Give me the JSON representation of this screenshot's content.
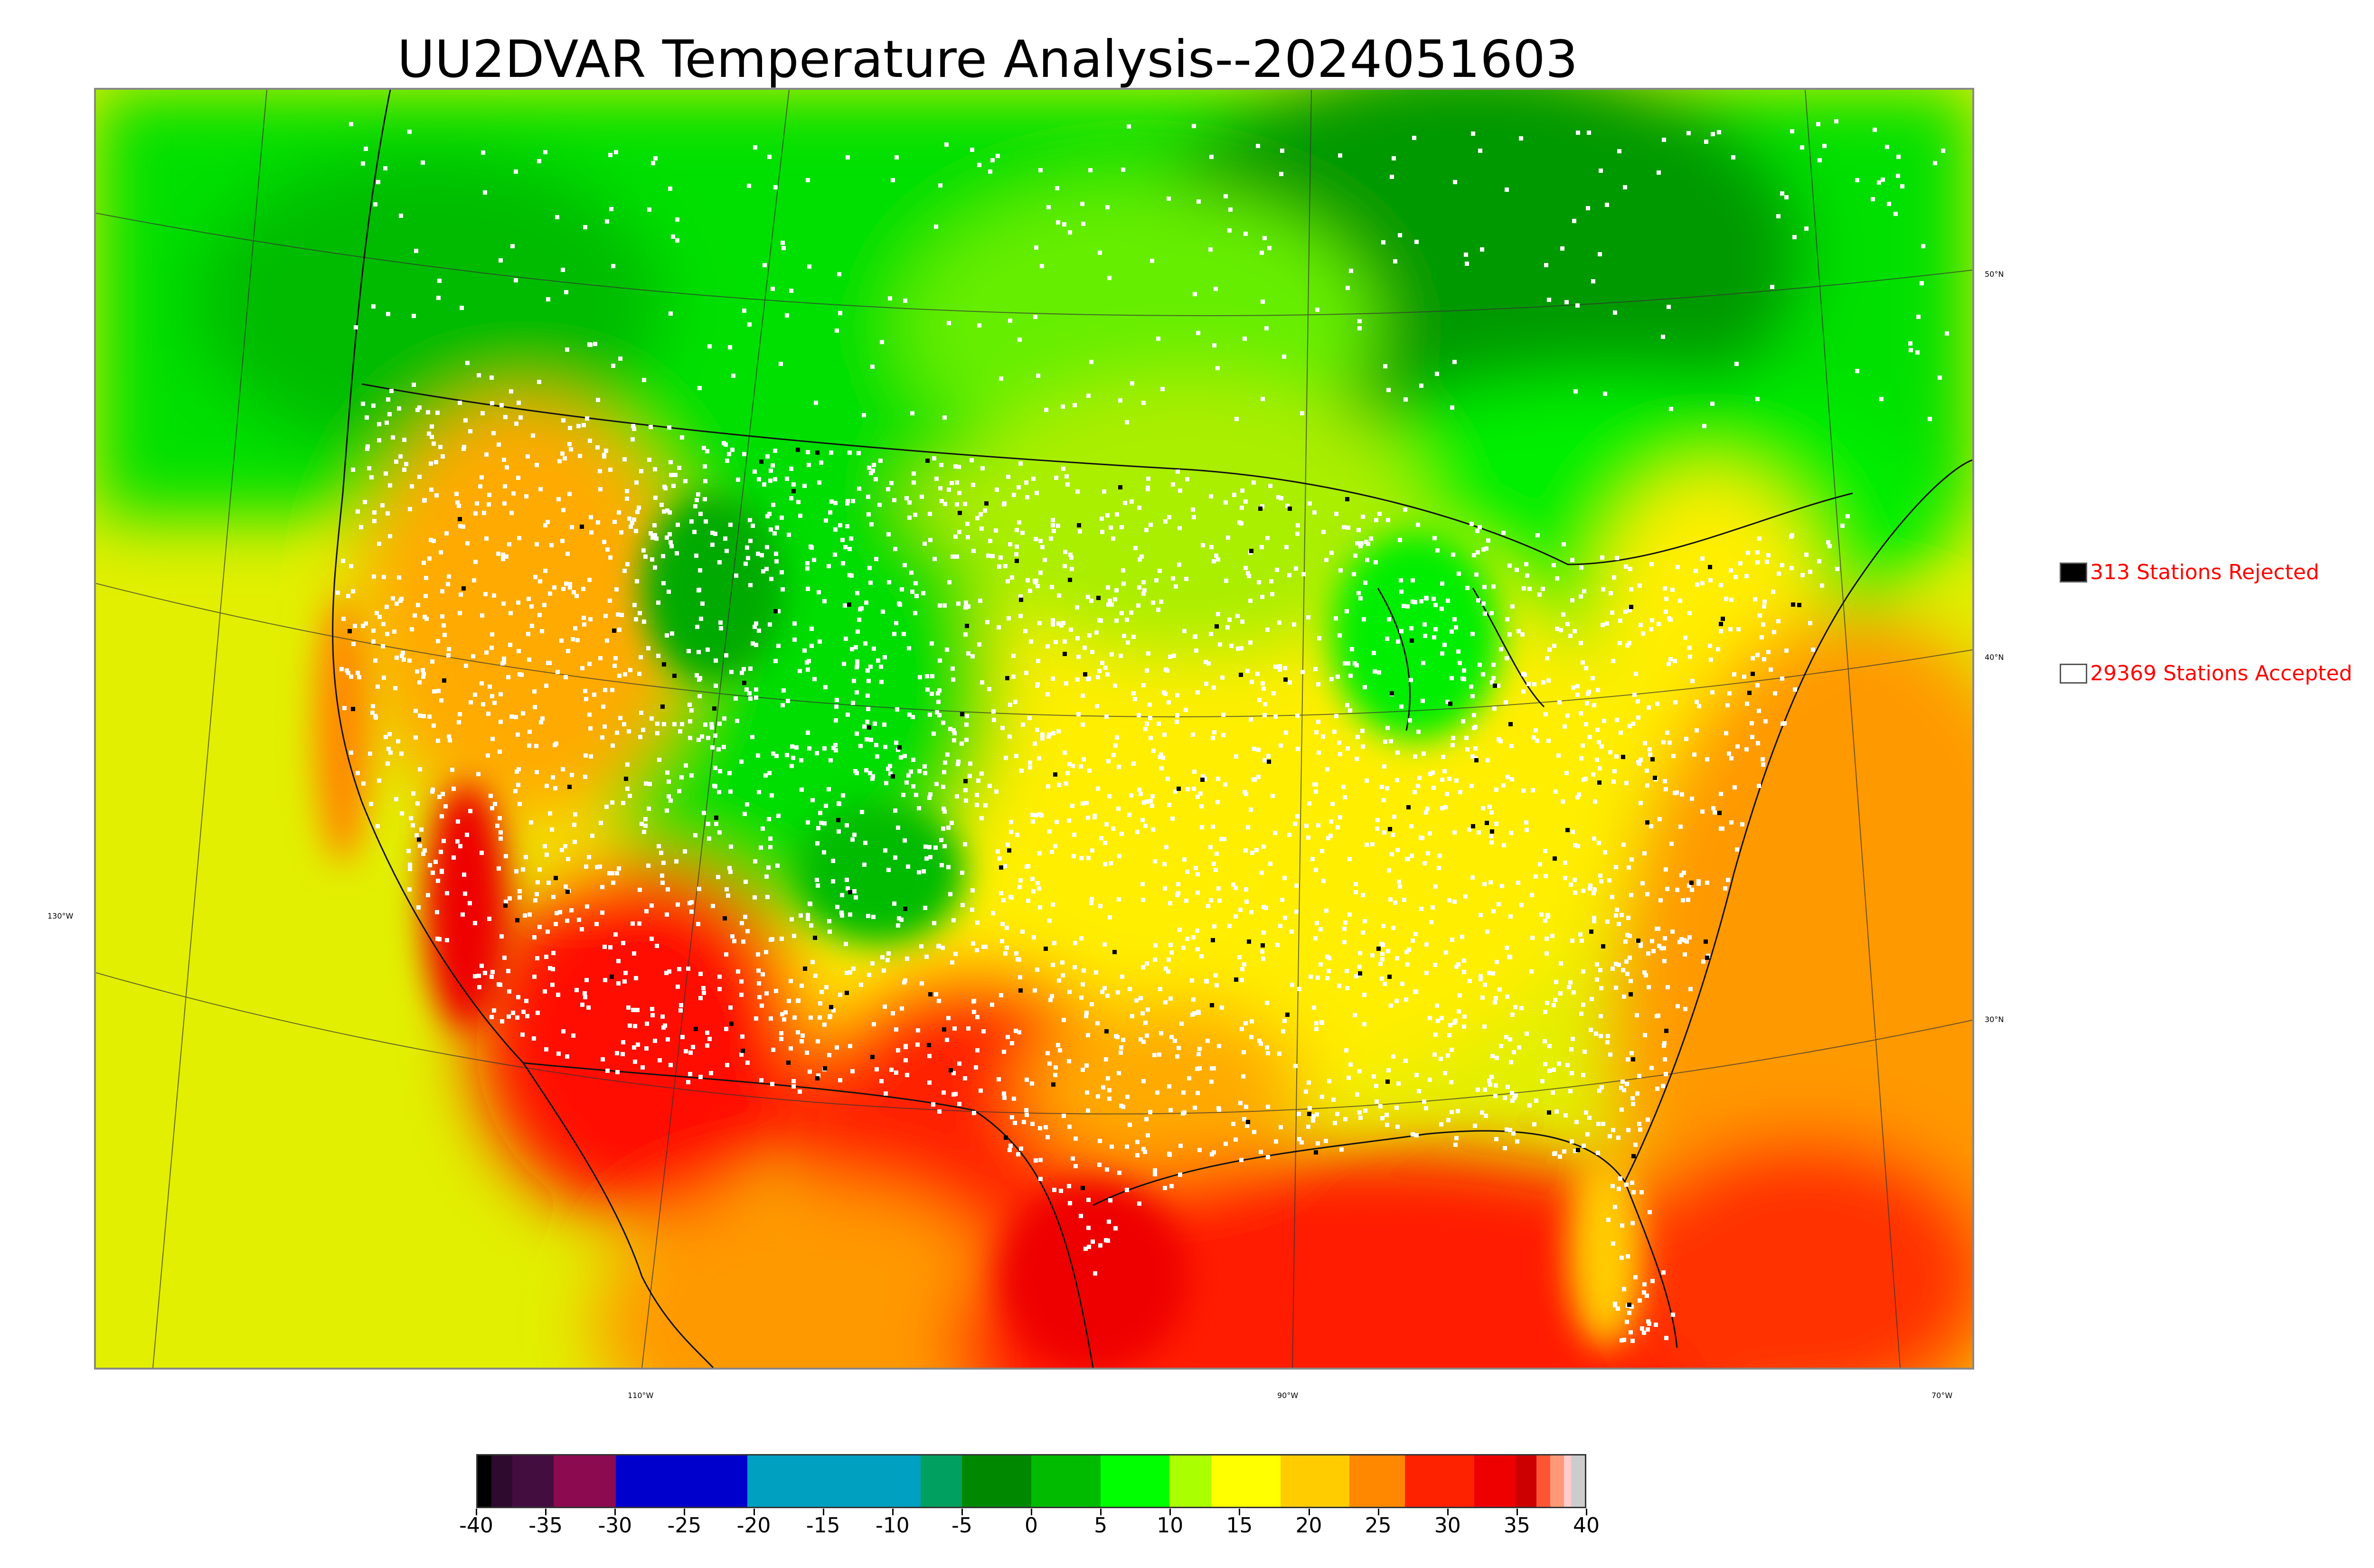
{
  "title": "UU2DVAR Temperature Analysis--2024051603",
  "legend": {
    "rejected": {
      "label": "313 Stations Rejected",
      "swatch_color": "#000000"
    },
    "accepted": {
      "label": "29369 Stations Accepted",
      "swatch_color": "#ffffff"
    }
  },
  "graticule_labels": {
    "latitudes": [
      "50°N",
      "40°N",
      "30°N"
    ],
    "left_longitude": "130°W",
    "bottom_longitudes": [
      "110°W",
      "90°W",
      "70°W"
    ]
  },
  "colorbar": {
    "min": -40,
    "max": 40,
    "tick_labels": [
      "-40",
      "-35",
      "-30",
      "-25",
      "-20",
      "-15",
      "-10",
      "-5",
      "0",
      "5",
      "10",
      "15",
      "20",
      "25",
      "30",
      "35",
      "40"
    ],
    "segments": [
      {
        "from": -40,
        "to": -39,
        "color": "#000000"
      },
      {
        "from": -39,
        "to": -37.5,
        "color": "#2e0a2e"
      },
      {
        "from": -37.5,
        "to": -34.5,
        "color": "#430d40"
      },
      {
        "from": -34.5,
        "to": -30,
        "color": "#8b0a50"
      },
      {
        "from": -30,
        "to": -20.5,
        "color": "#0000cd"
      },
      {
        "from": -20.5,
        "to": -8,
        "color": "#00a0c0"
      },
      {
        "from": -8,
        "to": -5,
        "color": "#00a060"
      },
      {
        "from": -5,
        "to": 0,
        "color": "#008800"
      },
      {
        "from": 0,
        "to": 5,
        "color": "#00bb00"
      },
      {
        "from": 5,
        "to": 10,
        "color": "#00ff00"
      },
      {
        "from": 10,
        "to": 13,
        "color": "#aaff00"
      },
      {
        "from": 13,
        "to": 18,
        "color": "#ffff00"
      },
      {
        "from": 18,
        "to": 23,
        "color": "#ffcc00"
      },
      {
        "from": 23,
        "to": 27,
        "color": "#ff8800"
      },
      {
        "from": 27,
        "to": 32,
        "color": "#ff2200"
      },
      {
        "from": 32,
        "to": 35,
        "color": "#ee0000"
      },
      {
        "from": 35,
        "to": 36.5,
        "color": "#cc0000"
      },
      {
        "from": 36.5,
        "to": 37.5,
        "color": "#ff5533"
      },
      {
        "from": 37.5,
        "to": 38.5,
        "color": "#ff9977"
      },
      {
        "from": 38.5,
        "to": 39,
        "color": "#ffcccc"
      },
      {
        "from": 39,
        "to": 40,
        "color": "#cccccc"
      }
    ]
  },
  "field_colors": {
    "cold": "#009900",
    "cool": "#00ee00",
    "mild": "#ccff00",
    "warm": "#ffcc00",
    "hot": "#ff6600",
    "very_hot": "#ff1100",
    "ocean_west": "#e2ef00",
    "ocean_gulf": "#ff2a00",
    "ocean_atlantic": "#ff9900"
  }
}
